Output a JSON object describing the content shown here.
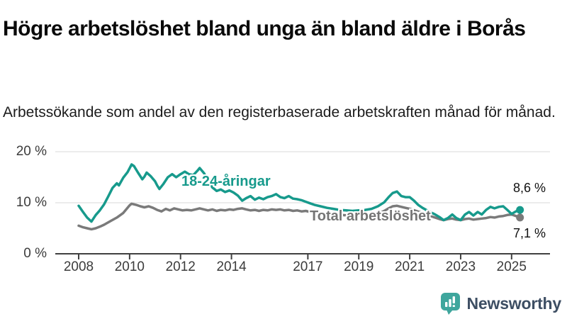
{
  "header": {
    "title": "Högre arbetslöshet bland unga än bland äldre i Borås",
    "subtitle": "Arbetssökande som andel av den registerbaserade arbetskraften månad för månad."
  },
  "chart_data": {
    "type": "line",
    "title": "Högre arbetslöshet bland unga än bland äldre i Borås",
    "subtitle": "Arbetssökande som andel av den registerbaserade arbetskraften månad för månad.",
    "unit": "%",
    "grid": "horizontal-only",
    "legend_position": "inline-line-labels",
    "x_axis": {
      "range": [
        2007.1,
        2026.5
      ],
      "ticks": [
        2008,
        2010,
        2012,
        2014,
        2017,
        2019,
        2021,
        2023,
        2025
      ]
    },
    "y_axis": {
      "range": [
        0,
        21
      ],
      "ticks": [
        {
          "value": 0,
          "label": "0 %"
        },
        {
          "value": 10,
          "label": "10 %"
        },
        {
          "value": 20,
          "label": "20 %"
        }
      ]
    },
    "series": [
      {
        "name": "Total arbetslöshet",
        "label_text": "Total arbetslöshet",
        "color": "#7a7a7a",
        "label_color": "#757575",
        "end_label": "7,1 %",
        "end_value": 7.1,
        "points": [
          [
            2008.0,
            5.5
          ],
          [
            2008.17,
            5.2
          ],
          [
            2008.33,
            5.0
          ],
          [
            2008.5,
            4.8
          ],
          [
            2008.67,
            5.0
          ],
          [
            2008.83,
            5.3
          ],
          [
            2009.0,
            5.7
          ],
          [
            2009.25,
            6.4
          ],
          [
            2009.5,
            7.1
          ],
          [
            2009.75,
            8.0
          ],
          [
            2010.0,
            9.5
          ],
          [
            2010.08,
            9.8
          ],
          [
            2010.25,
            9.6
          ],
          [
            2010.42,
            9.3
          ],
          [
            2010.58,
            9.1
          ],
          [
            2010.75,
            9.3
          ],
          [
            2010.92,
            9.0
          ],
          [
            2011.08,
            8.6
          ],
          [
            2011.25,
            8.3
          ],
          [
            2011.42,
            8.8
          ],
          [
            2011.58,
            8.5
          ],
          [
            2011.75,
            8.9
          ],
          [
            2011.92,
            8.7
          ],
          [
            2012.08,
            8.5
          ],
          [
            2012.25,
            8.6
          ],
          [
            2012.42,
            8.5
          ],
          [
            2012.58,
            8.7
          ],
          [
            2012.75,
            8.9
          ],
          [
            2012.92,
            8.7
          ],
          [
            2013.08,
            8.5
          ],
          [
            2013.25,
            8.7
          ],
          [
            2013.42,
            8.4
          ],
          [
            2013.58,
            8.6
          ],
          [
            2013.75,
            8.5
          ],
          [
            2013.92,
            8.7
          ],
          [
            2014.08,
            8.6
          ],
          [
            2014.25,
            8.8
          ],
          [
            2014.42,
            8.9
          ],
          [
            2014.58,
            8.7
          ],
          [
            2014.75,
            8.5
          ],
          [
            2014.92,
            8.6
          ],
          [
            2015.08,
            8.4
          ],
          [
            2015.25,
            8.6
          ],
          [
            2015.42,
            8.5
          ],
          [
            2015.58,
            8.7
          ],
          [
            2015.75,
            8.6
          ],
          [
            2015.92,
            8.7
          ],
          [
            2016.08,
            8.5
          ],
          [
            2016.25,
            8.6
          ],
          [
            2016.42,
            8.4
          ],
          [
            2016.58,
            8.5
          ],
          [
            2016.75,
            8.3
          ],
          [
            2016.92,
            8.4
          ],
          [
            2017.08,
            8.2
          ],
          [
            2017.33,
            8.0
          ],
          [
            2017.58,
            7.9
          ],
          [
            2017.83,
            7.8
          ],
          [
            2018.08,
            7.7
          ],
          [
            2018.33,
            7.6
          ],
          [
            2018.58,
            7.5
          ],
          [
            2018.83,
            7.5
          ],
          [
            2019.08,
            7.5
          ],
          [
            2019.33,
            7.6
          ],
          [
            2019.58,
            7.7
          ],
          [
            2019.83,
            8.0
          ],
          [
            2020.0,
            8.4
          ],
          [
            2020.17,
            8.9
          ],
          [
            2020.33,
            9.3
          ],
          [
            2020.5,
            9.4
          ],
          [
            2020.67,
            9.2
          ],
          [
            2020.83,
            9.0
          ],
          [
            2021.0,
            8.8
          ],
          [
            2021.25,
            8.4
          ],
          [
            2021.5,
            8.0
          ],
          [
            2021.75,
            7.5
          ],
          [
            2022.0,
            7.1
          ],
          [
            2022.17,
            6.8
          ],
          [
            2022.33,
            6.6
          ],
          [
            2022.5,
            6.8
          ],
          [
            2022.67,
            6.9
          ],
          [
            2022.83,
            6.7
          ],
          [
            2023.0,
            6.6
          ],
          [
            2023.17,
            6.8
          ],
          [
            2023.33,
            6.9
          ],
          [
            2023.5,
            6.7
          ],
          [
            2023.67,
            6.8
          ],
          [
            2023.83,
            6.9
          ],
          [
            2024.0,
            7.0
          ],
          [
            2024.17,
            7.2
          ],
          [
            2024.33,
            7.1
          ],
          [
            2024.5,
            7.3
          ],
          [
            2024.67,
            7.4
          ],
          [
            2024.83,
            7.6
          ],
          [
            2025.0,
            7.7
          ],
          [
            2025.17,
            7.4
          ],
          [
            2025.33,
            7.1
          ]
        ]
      },
      {
        "name": "18-24-åringar",
        "label_text": "18-24-åringar",
        "color": "#179a8c",
        "label_color": "#179a8c",
        "end_label": "8,6 %",
        "end_value": 8.6,
        "points": [
          [
            2008.0,
            9.4
          ],
          [
            2008.17,
            8.2
          ],
          [
            2008.33,
            7.1
          ],
          [
            2008.5,
            6.3
          ],
          [
            2008.67,
            7.6
          ],
          [
            2008.83,
            8.5
          ],
          [
            2009.0,
            9.7
          ],
          [
            2009.17,
            11.3
          ],
          [
            2009.33,
            12.9
          ],
          [
            2009.5,
            13.8
          ],
          [
            2009.58,
            13.4
          ],
          [
            2009.75,
            14.9
          ],
          [
            2009.92,
            16.0
          ],
          [
            2010.08,
            17.5
          ],
          [
            2010.17,
            17.2
          ],
          [
            2010.33,
            15.9
          ],
          [
            2010.5,
            14.6
          ],
          [
            2010.58,
            15.1
          ],
          [
            2010.67,
            15.9
          ],
          [
            2010.83,
            15.2
          ],
          [
            2011.0,
            14.2
          ],
          [
            2011.08,
            13.4
          ],
          [
            2011.17,
            12.7
          ],
          [
            2011.33,
            13.7
          ],
          [
            2011.5,
            15.0
          ],
          [
            2011.67,
            15.6
          ],
          [
            2011.83,
            15.0
          ],
          [
            2012.0,
            15.6
          ],
          [
            2012.17,
            16.1
          ],
          [
            2012.33,
            15.6
          ],
          [
            2012.5,
            15.4
          ],
          [
            2012.67,
            16.3
          ],
          [
            2012.75,
            16.8
          ],
          [
            2012.92,
            15.8
          ],
          [
            2013.08,
            14.3
          ],
          [
            2013.25,
            13.0
          ],
          [
            2013.42,
            12.3
          ],
          [
            2013.58,
            12.6
          ],
          [
            2013.75,
            12.1
          ],
          [
            2013.92,
            12.4
          ],
          [
            2014.08,
            12.0
          ],
          [
            2014.25,
            11.4
          ],
          [
            2014.42,
            10.4
          ],
          [
            2014.58,
            10.9
          ],
          [
            2014.75,
            11.3
          ],
          [
            2014.92,
            10.6
          ],
          [
            2015.08,
            11.0
          ],
          [
            2015.25,
            10.7
          ],
          [
            2015.42,
            11.1
          ],
          [
            2015.58,
            11.3
          ],
          [
            2015.75,
            11.7
          ],
          [
            2015.92,
            11.1
          ],
          [
            2016.08,
            10.9
          ],
          [
            2016.25,
            11.3
          ],
          [
            2016.42,
            10.8
          ],
          [
            2016.58,
            10.7
          ],
          [
            2016.75,
            10.5
          ],
          [
            2016.92,
            10.2
          ],
          [
            2017.08,
            9.9
          ],
          [
            2017.25,
            9.6
          ],
          [
            2017.5,
            9.3
          ],
          [
            2017.75,
            9.0
          ],
          [
            2018.0,
            8.8
          ],
          [
            2018.25,
            8.6
          ],
          [
            2018.5,
            8.5
          ],
          [
            2018.75,
            8.4
          ],
          [
            2019.0,
            8.5
          ],
          [
            2019.25,
            8.6
          ],
          [
            2019.5,
            8.8
          ],
          [
            2019.75,
            9.3
          ],
          [
            2020.0,
            10.1
          ],
          [
            2020.17,
            11.1
          ],
          [
            2020.33,
            11.9
          ],
          [
            2020.5,
            12.2
          ],
          [
            2020.67,
            11.3
          ],
          [
            2020.83,
            11.1
          ],
          [
            2021.0,
            11.1
          ],
          [
            2021.17,
            10.4
          ],
          [
            2021.33,
            9.6
          ],
          [
            2021.5,
            9.0
          ],
          [
            2021.75,
            8.3
          ],
          [
            2022.0,
            7.7
          ],
          [
            2022.17,
            7.2
          ],
          [
            2022.33,
            6.6
          ],
          [
            2022.5,
            7.0
          ],
          [
            2022.67,
            7.7
          ],
          [
            2022.83,
            7.0
          ],
          [
            2023.0,
            6.6
          ],
          [
            2023.17,
            7.7
          ],
          [
            2023.33,
            8.2
          ],
          [
            2023.5,
            7.5
          ],
          [
            2023.67,
            8.2
          ],
          [
            2023.83,
            7.7
          ],
          [
            2024.0,
            8.6
          ],
          [
            2024.17,
            9.2
          ],
          [
            2024.33,
            8.9
          ],
          [
            2024.5,
            9.2
          ],
          [
            2024.67,
            9.3
          ],
          [
            2024.83,
            8.6
          ],
          [
            2025.0,
            7.8
          ],
          [
            2025.17,
            8.3
          ],
          [
            2025.33,
            8.6
          ]
        ]
      }
    ],
    "style": {
      "grid_color": "#d9d9d9",
      "axis_color": "#404040",
      "axis_text_color": "#3c3c3c"
    }
  },
  "footer": {
    "brand": "Newsworthy",
    "brand_color": "#3d4e63",
    "icon": "newsworthy-chart-speech-bubble-icon",
    "icon_color": "#3fa69d"
  }
}
